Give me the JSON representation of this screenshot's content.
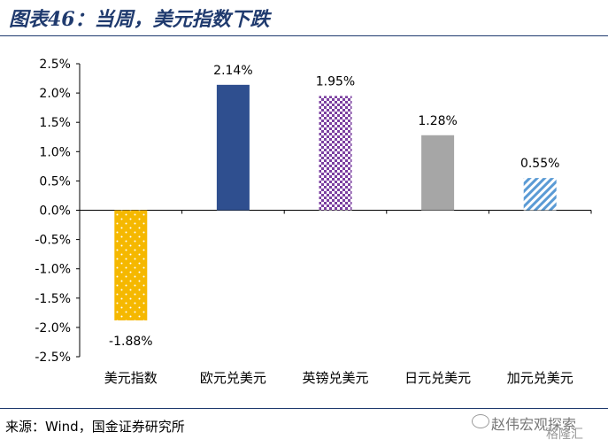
{
  "header": {
    "title": "图表46：当周，美元指数下跌"
  },
  "footer": {
    "source": "来源：Wind，国金证券研究所"
  },
  "watermark": {
    "name": "赵伟宏观探索",
    "sub": "格隆汇"
  },
  "chart_data": {
    "type": "bar",
    "categories": [
      "美元指数",
      "欧元兑美元",
      "英镑兑美元",
      "日元兑美元",
      "加元兑美元"
    ],
    "values": [
      -1.88,
      2.14,
      1.95,
      1.28,
      0.55
    ],
    "data_labels": [
      "-1.88%",
      "2.14%",
      "1.95%",
      "1.28%",
      "0.55%"
    ],
    "ylim": [
      -2.5,
      2.5
    ],
    "yticks": [
      2.5,
      2.0,
      1.5,
      1.0,
      0.5,
      0.0,
      -0.5,
      -1.0,
      -1.5,
      -2.0,
      -2.5
    ],
    "ytick_labels": [
      "2.5%",
      "2.0%",
      "1.5%",
      "1.0%",
      "0.5%",
      "0.0%",
      "-0.5%",
      "-1.0%",
      "-1.5%",
      "-2.0%",
      "-2.5%"
    ],
    "colors": [
      "#f5b800",
      "#2f4f8f",
      "#7b3fa0",
      "#a6a6a6",
      "#5b9bd5"
    ],
    "patterns": [
      "dots",
      "solid",
      "checker",
      "solid",
      "diagonal"
    ],
    "grid": false,
    "legend": "none"
  }
}
